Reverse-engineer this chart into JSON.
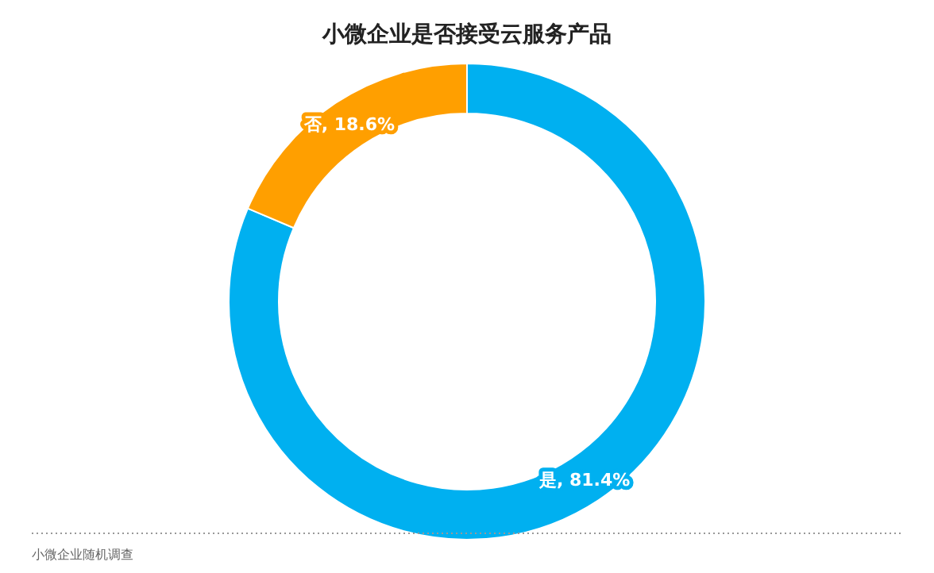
{
  "chart_data": {
    "type": "donut",
    "title": "小微企业是否接受云服务产品",
    "categories": [
      null,
      null
    ],
    "values": [
      81.4,
      18.6
    ],
    "colors": [
      "#00b0f0",
      "#ff9f00"
    ],
    "value_labels": [
      "是, 81.4%",
      "否, 18.6%"
    ],
    "annotations": [
      "小微企业随机调查"
    ]
  }
}
